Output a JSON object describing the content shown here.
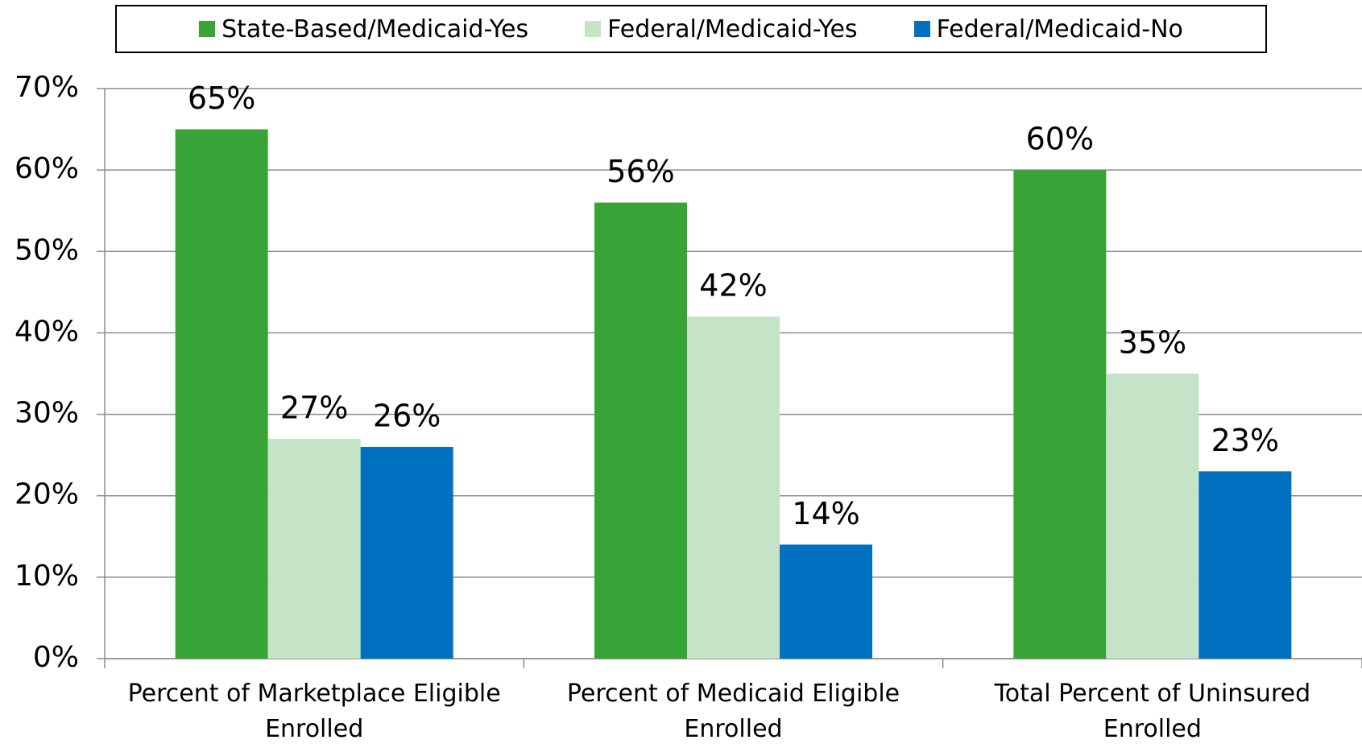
{
  "chart_data": {
    "type": "bar",
    "categories": [
      "Percent of Marketplace Eligible Enrolled",
      "Percent of Medicaid Eligible Enrolled",
      "Total Percent of Uninsured Enrolled"
    ],
    "series": [
      {
        "name": "State-Based/Medicaid-Yes",
        "color": "#38a336",
        "values": [
          65,
          56,
          60
        ],
        "value_labels": [
          "65%",
          "56%",
          "60%"
        ]
      },
      {
        "name": "Federal/Medicaid-Yes",
        "color": "#c5e3c6",
        "values": [
          27,
          42,
          35
        ],
        "value_labels": [
          "27%",
          "42%",
          "35%"
        ]
      },
      {
        "name": "Federal/Medicaid-No",
        "color": "#0070c0",
        "values": [
          26,
          14,
          23
        ],
        "value_labels": [
          "26%",
          "14%",
          "23%"
        ]
      }
    ],
    "ylim": [
      0,
      70
    ],
    "yticks": [
      {
        "value": 0,
        "label": "0%"
      },
      {
        "value": 10,
        "label": "10%"
      },
      {
        "value": 20,
        "label": "20%"
      },
      {
        "value": 30,
        "label": "30%"
      },
      {
        "value": 40,
        "label": "40%"
      },
      {
        "value": 50,
        "label": "50%"
      },
      {
        "value": 60,
        "label": "60%"
      },
      {
        "value": 70,
        "label": "70%"
      }
    ],
    "grid": true,
    "legend": "top"
  }
}
